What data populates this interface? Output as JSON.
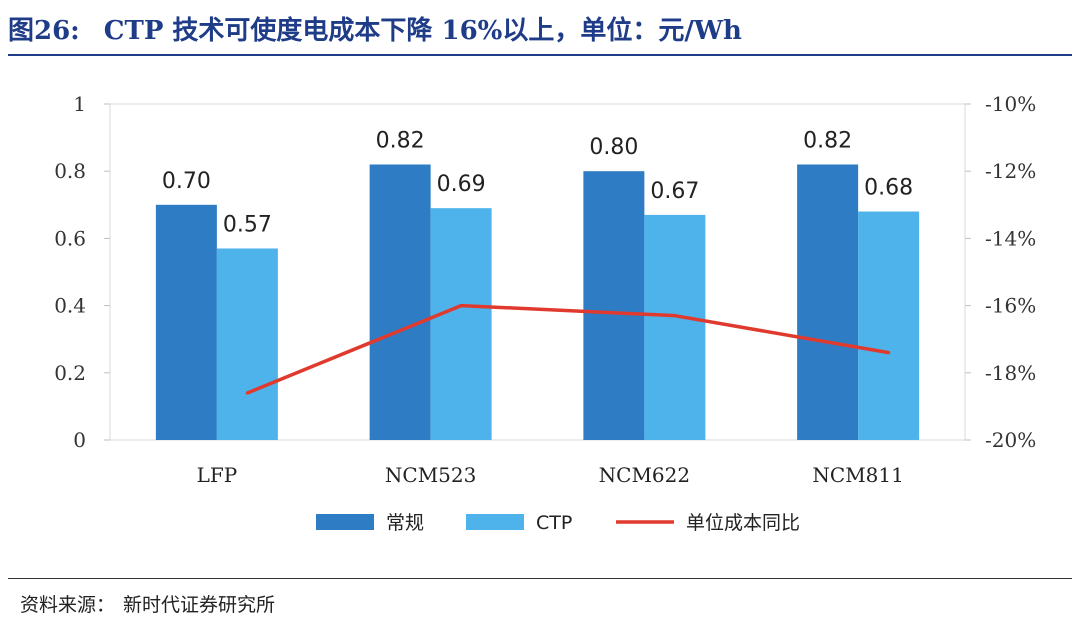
{
  "figure": {
    "number": "图26:",
    "title": "CTP 技术可使度电成本下降 16%以上，单位：元/Wh",
    "source_label": "资料来源：",
    "source_value": "新时代证券研究所"
  },
  "chart_data": {
    "type": "bar",
    "categories": [
      "LFP",
      "NCM523",
      "NCM622",
      "NCM811"
    ],
    "series": [
      {
        "name": "常规",
        "type": "bar",
        "axis": "left",
        "color": "#2e7dc4",
        "values": [
          0.7,
          0.82,
          0.8,
          0.82
        ],
        "labels": [
          "0.70",
          "0.82",
          "0.80",
          "0.82"
        ]
      },
      {
        "name": "CTP",
        "type": "bar",
        "axis": "left",
        "color": "#4db3ea",
        "values": [
          0.57,
          0.69,
          0.67,
          0.68
        ],
        "labels": [
          "0.57",
          "0.69",
          "0.67",
          "0.68"
        ]
      },
      {
        "name": "单位成本同比",
        "type": "line",
        "axis": "right",
        "color": "#e03a2f",
        "values": [
          -18.6,
          -16.0,
          -16.3,
          -17.4
        ]
      }
    ],
    "y_left": {
      "min": 0,
      "max": 1,
      "ticks": [
        "0",
        "0.2",
        "0.4",
        "0.6",
        "0.8",
        "1"
      ]
    },
    "y_right": {
      "min": -20,
      "max": -10,
      "ticks": [
        "-20%",
        "-18%",
        "-16%",
        "-14%",
        "-12%",
        "-10%"
      ]
    },
    "grid": false,
    "legend_position": "bottom"
  }
}
